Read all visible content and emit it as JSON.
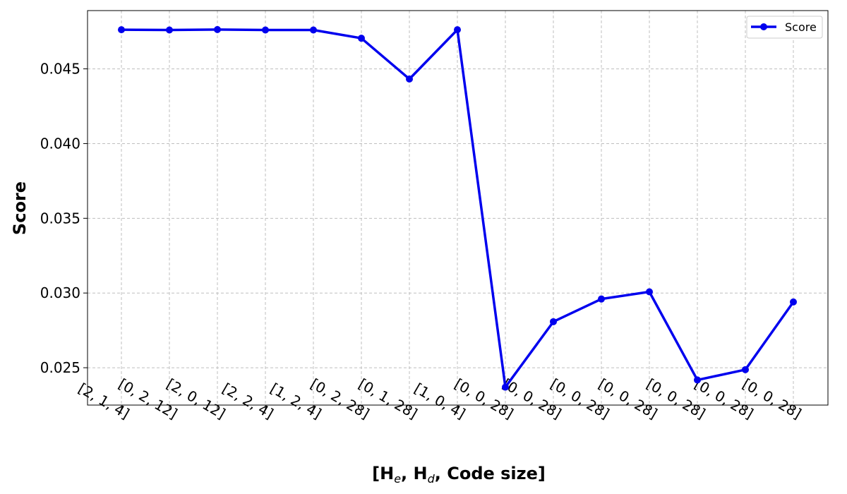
{
  "chart_data": {
    "type": "line",
    "categories": [
      "[2, 1, 4]",
      "[0, 2, 12]",
      "[2, 0, 12]",
      "[2, 2, 4]",
      "[1, 2, 4]",
      "[0, 2, 28]",
      "[0, 1, 28]",
      "[1, 0, 4]",
      "[0, 0, 28]",
      "[0, 0, 28]",
      "[0, 0, 28]",
      "[0, 0, 28]",
      "[0, 0, 28]",
      "[0, 0, 28]",
      "[0, 0, 28]"
    ],
    "series": [
      {
        "name": "Score",
        "color": "#0000ee",
        "values": [
          0.04762,
          0.0476,
          0.04763,
          0.0476,
          0.0476,
          0.04705,
          0.04432,
          0.04762,
          0.0237,
          0.02808,
          0.0296,
          0.03008,
          0.02418,
          0.02487,
          0.0294
        ]
      }
    ],
    "title": "",
    "xlabel": {
      "pre": "[H",
      "sub1": "e",
      "mid": ", H",
      "sub2": "d",
      "post": ", Code size]"
    },
    "ylabel": "Score",
    "ylim": [
      0.0225,
      0.0489
    ],
    "yticks": [
      0.025,
      0.03,
      0.035,
      0.04,
      0.045
    ],
    "ytick_labels": [
      "0.025",
      "0.030",
      "0.035",
      "0.040",
      "0.045"
    ],
    "grid": true,
    "legend": {
      "position": "top-right",
      "label": "Score"
    }
  }
}
